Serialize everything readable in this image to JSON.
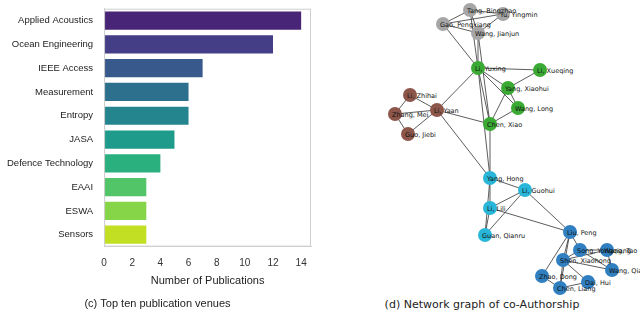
{
  "chart_data": {
    "type": "bar",
    "orientation": "horizontal",
    "title": "(c) Top ten publication venues",
    "x_label": "Number of Publications",
    "categories": [
      "Applied Acoustics",
      "Ocean Engineering",
      "IEEE Access",
      "Measurement",
      "Entropy",
      "JASA",
      "Defence Technology",
      "EAAI",
      "ESWA",
      "Sensors"
    ],
    "values": [
      14,
      12,
      7,
      6,
      6,
      5,
      4,
      3,
      3,
      3
    ],
    "colors": [
      "#482576",
      "#433e85",
      "#38598c",
      "#2d708e",
      "#25858e",
      "#1e9b8a",
      "#2ab07f",
      "#52c569",
      "#86d549",
      "#c2df23"
    ],
    "xlim": [
      0,
      14.7
    ],
    "xticks": [
      0,
      2,
      4,
      6,
      8,
      10,
      12,
      14
    ],
    "grid": false
  },
  "network": {
    "caption": "(d) Network graph of co-Authorship",
    "groups": [
      {
        "color": "#a6a6a6"
      },
      {
        "color": "#3aaa35"
      },
      {
        "color": "#8c564b"
      },
      {
        "color": "#29b6d8"
      },
      {
        "color": "#2f7fc1"
      }
    ],
    "nodes": [
      {
        "label": "Tang, Bingzhao",
        "group": 0
      },
      {
        "label": "Yu, Yingmin",
        "group": 0
      },
      {
        "label": "Gao, Pengxiang",
        "group": 0
      },
      {
        "label": "Wang, Jianjun",
        "group": 0
      },
      {
        "label": "Li, Xueqing",
        "group": 1
      },
      {
        "label": "Li, Yuxing",
        "group": 1
      },
      {
        "label": "Yang, Xiaohui",
        "group": 1
      },
      {
        "label": "Wang, Long",
        "group": 1
      },
      {
        "label": "Chen, Xiao",
        "group": 1
      },
      {
        "label": "Li, Zhihai",
        "group": 2
      },
      {
        "label": "Zhang, Mei",
        "group": 2
      },
      {
        "label": "Guo, Jiebi",
        "group": 2
      },
      {
        "label": "Li, Yaan",
        "group": 2
      },
      {
        "label": "Yang, Hong",
        "group": 3
      },
      {
        "label": "Li, Guohui",
        "group": 3
      },
      {
        "label": "Li, Lili",
        "group": 3
      },
      {
        "label": "Guan, Qianru",
        "group": 3
      },
      {
        "label": "Liu, Peng",
        "group": 4
      },
      {
        "label": "Song, Yongqiang",
        "group": 4
      },
      {
        "label": "Wang, Tao",
        "group": 4
      },
      {
        "label": "Shen, Xiaohong",
        "group": 4
      },
      {
        "label": "Wang, Qian",
        "group": 4
      },
      {
        "label": "Zhao, Dong",
        "group": 4
      },
      {
        "label": "Chen, Liang",
        "group": 4
      },
      {
        "label": "Dai, Hui",
        "group": 4
      }
    ],
    "edges": [
      [
        0,
        1
      ],
      [
        0,
        2
      ],
      [
        0,
        3
      ],
      [
        1,
        2
      ],
      [
        1,
        3
      ],
      [
        2,
        3
      ],
      [
        2,
        5
      ],
      [
        3,
        5
      ],
      [
        0,
        5
      ],
      [
        3,
        8
      ],
      [
        4,
        5
      ],
      [
        5,
        6
      ],
      [
        5,
        7
      ],
      [
        5,
        8
      ],
      [
        6,
        7
      ],
      [
        6,
        8
      ],
      [
        7,
        8
      ],
      [
        4,
        6
      ],
      [
        9,
        12
      ],
      [
        10,
        12
      ],
      [
        11,
        12
      ],
      [
        9,
        10
      ],
      [
        10,
        11
      ],
      [
        12,
        5
      ],
      [
        12,
        8
      ],
      [
        12,
        13
      ],
      [
        8,
        13
      ],
      [
        5,
        13
      ],
      [
        13,
        14
      ],
      [
        13,
        15
      ],
      [
        13,
        16
      ],
      [
        14,
        15
      ],
      [
        15,
        16
      ],
      [
        14,
        16
      ],
      [
        14,
        17
      ],
      [
        15,
        17
      ],
      [
        17,
        18
      ],
      [
        17,
        20
      ],
      [
        17,
        22
      ],
      [
        18,
        19
      ],
      [
        18,
        20
      ],
      [
        18,
        21
      ],
      [
        19,
        20
      ],
      [
        19,
        21
      ],
      [
        20,
        21
      ],
      [
        20,
        23
      ],
      [
        20,
        24
      ],
      [
        22,
        23
      ],
      [
        23,
        24
      ],
      [
        17,
        23
      ]
    ]
  }
}
